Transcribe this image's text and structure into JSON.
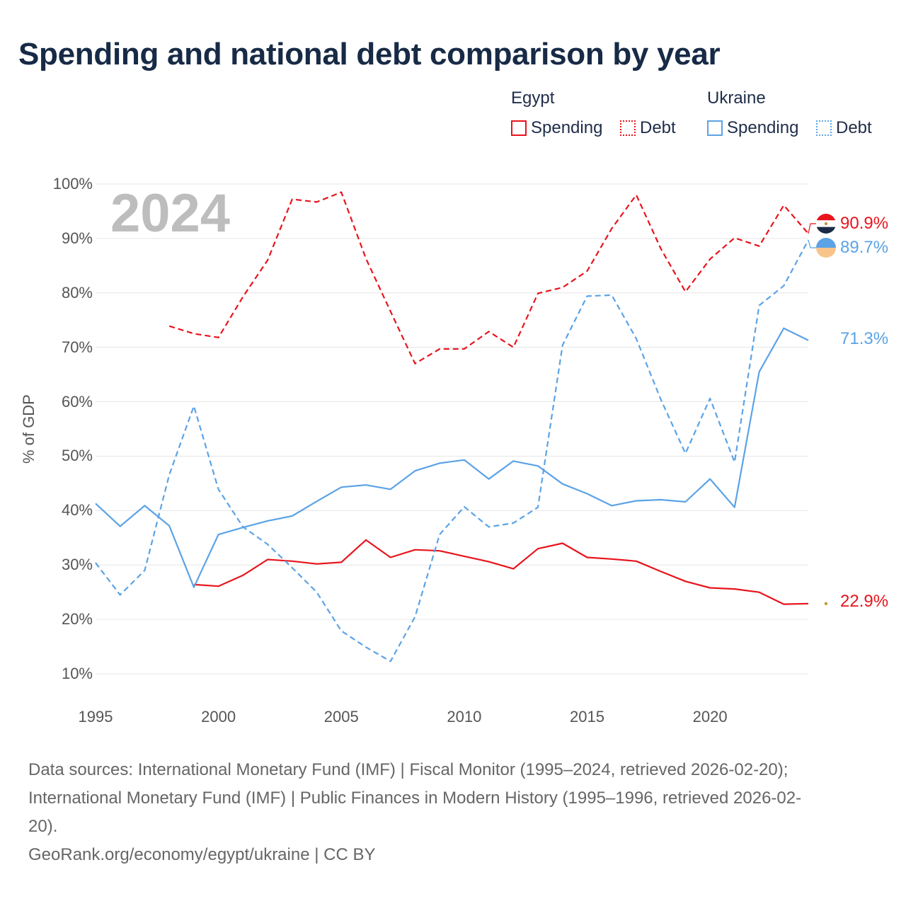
{
  "title": "Spending and national debt comparison by year",
  "legend": {
    "groups": [
      {
        "name": "Egypt",
        "color": "#e8141c",
        "items": [
          {
            "label": "Spending",
            "style": "solid"
          },
          {
            "label": "Debt",
            "style": "dotted"
          }
        ]
      },
      {
        "name": "Ukraine",
        "color": "#5ba3e6",
        "items": [
          {
            "label": "Spending",
            "style": "solid"
          },
          {
            "label": "Debt",
            "style": "dotted"
          }
        ]
      }
    ]
  },
  "year_display": "2024",
  "end_labels": {
    "egypt_debt": "90.9%",
    "ukraine_debt": "89.7%",
    "ukraine_spending": "71.3%",
    "egypt_spending": "22.9%"
  },
  "footer": {
    "sources_line1": "Data sources: International Monetary Fund (IMF) | Fiscal Monitor (1995–2024, retrieved 2026-02-20);",
    "sources_line2": "International Monetary Fund (IMF) | Public Finances in Modern History (1995–1996, retrieved 2026-02-",
    "sources_line3": "20).",
    "credit": "GeoRank.org/economy/egypt/ukraine | CC BY"
  },
  "chart_data": {
    "type": "line",
    "title": "Spending and national debt comparison by year",
    "xlabel": "",
    "ylabel": "% of GDP",
    "xlim": [
      1995,
      2024
    ],
    "ylim": [
      10,
      100
    ],
    "x_ticks": [
      1995,
      2000,
      2005,
      2010,
      2015,
      2020
    ],
    "y_ticks": [
      "10%",
      "20%",
      "30%",
      "40%",
      "50%",
      "60%",
      "70%",
      "80%",
      "90%",
      "100%"
    ],
    "y_tick_values": [
      10,
      20,
      30,
      40,
      50,
      60,
      70,
      80,
      90,
      100
    ],
    "grid": true,
    "legend_position": "top-right",
    "series": [
      {
        "name": "Egypt Debt",
        "country": "Egypt",
        "metric": "Debt",
        "color": "#e8141c",
        "dash": "dashed",
        "x": [
          1998,
          1999,
          2000,
          2001,
          2002,
          2003,
          2004,
          2005,
          2006,
          2007,
          2008,
          2009,
          2010,
          2011,
          2012,
          2013,
          2014,
          2015,
          2016,
          2017,
          2018,
          2019,
          2020,
          2021,
          2022,
          2023,
          2024
        ],
        "values": [
          73.9,
          72.5,
          71.8,
          79.3,
          86.0,
          97.2,
          96.7,
          98.5,
          86.3,
          76.6,
          67.0,
          69.7,
          69.7,
          72.9,
          70.0,
          79.9,
          81.0,
          84.0,
          91.8,
          98.0,
          88.1,
          80.2,
          86.2,
          90.1,
          88.6,
          96.1,
          90.9
        ]
      },
      {
        "name": "Egypt Spending",
        "country": "Egypt",
        "metric": "Spending",
        "color": "#e8141c",
        "dash": "solid",
        "x": [
          1999,
          2000,
          2001,
          2002,
          2003,
          2004,
          2005,
          2006,
          2007,
          2008,
          2009,
          2010,
          2011,
          2012,
          2013,
          2014,
          2015,
          2016,
          2017,
          2018,
          2019,
          2020,
          2021,
          2022,
          2023,
          2024
        ],
        "values": [
          26.4,
          26.1,
          28.1,
          31.0,
          30.7,
          30.2,
          30.5,
          34.6,
          31.4,
          32.8,
          32.6,
          31.6,
          30.6,
          29.3,
          33.0,
          34.0,
          31.4,
          31.1,
          30.7,
          28.8,
          27.0,
          25.8,
          25.6,
          25.0,
          22.8,
          22.9
        ]
      },
      {
        "name": "Ukraine Spending",
        "country": "Ukraine",
        "metric": "Spending",
        "color": "#5ba3e6",
        "dash": "solid",
        "x": [
          1995,
          1996,
          1997,
          1998,
          1999,
          2000,
          2001,
          2002,
          2003,
          2004,
          2005,
          2006,
          2007,
          2008,
          2009,
          2010,
          2011,
          2012,
          2013,
          2014,
          2015,
          2016,
          2017,
          2018,
          2019,
          2020,
          2021,
          2022,
          2023,
          2024
        ],
        "values": [
          41.3,
          37.1,
          40.9,
          37.2,
          25.9,
          35.6,
          36.9,
          38.1,
          39.0,
          41.7,
          44.3,
          44.7,
          43.9,
          47.3,
          48.7,
          49.3,
          45.8,
          49.1,
          48.2,
          44.9,
          43.1,
          40.9,
          41.8,
          42.0,
          41.6,
          45.8,
          40.6,
          65.5,
          73.5,
          71.3
        ]
      },
      {
        "name": "Ukraine Debt",
        "country": "Ukraine",
        "metric": "Debt",
        "color": "#5ba3e6",
        "dash": "dashed",
        "x": [
          1995,
          1996,
          1997,
          1998,
          1999,
          2000,
          2001,
          2002,
          2003,
          2004,
          2005,
          2006,
          2007,
          2008,
          2009,
          2010,
          2011,
          2012,
          2013,
          2014,
          2015,
          2016,
          2017,
          2018,
          2019,
          2020,
          2021,
          2022,
          2023,
          2024
        ],
        "values": [
          30.4,
          24.5,
          29.0,
          46.6,
          59.2,
          43.9,
          37.0,
          33.8,
          29.5,
          25.0,
          17.9,
          14.9,
          12.3,
          20.5,
          35.6,
          40.7,
          37.0,
          37.7,
          40.6,
          70.4,
          79.4,
          79.6,
          71.6,
          60.4,
          50.5,
          60.6,
          48.9,
          77.7,
          81.3,
          89.7
        ]
      }
    ]
  }
}
